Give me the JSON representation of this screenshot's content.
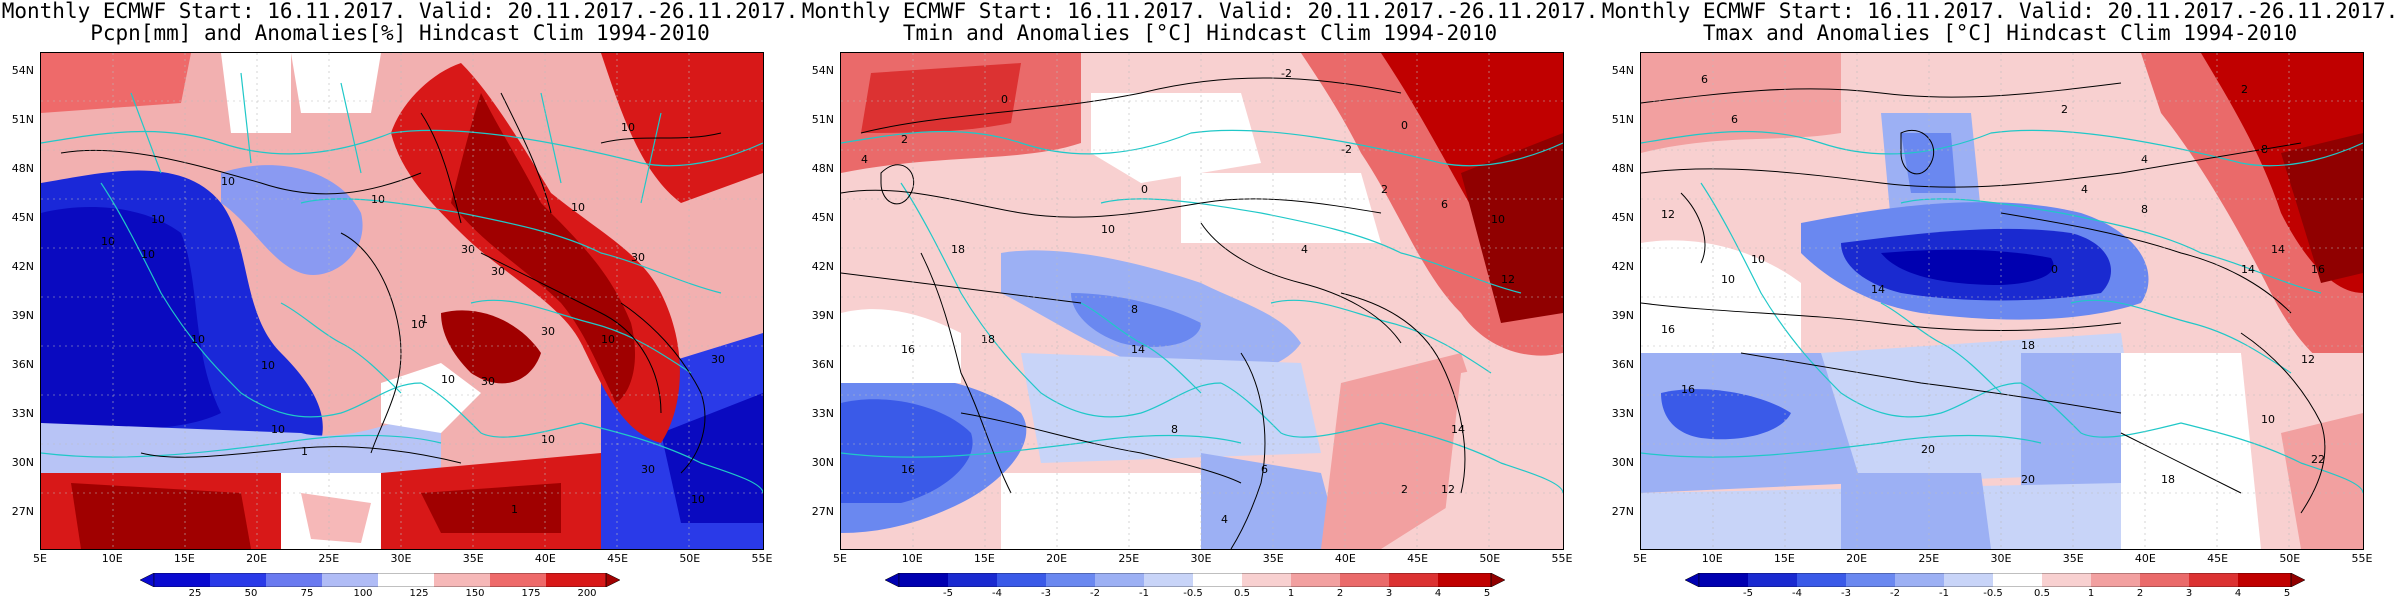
{
  "panels": [
    {
      "title1": "Monthly ECMWF Start: 16.11.2017. Valid: 20.11.2017.-26.11.2017.",
      "title2": "Pcpn[mm] and Anomalies[%] Hindcast Clim 1994-2010",
      "colorbar": [
        "25",
        "50",
        "75",
        "100",
        "125",
        "150",
        "175",
        "200"
      ],
      "colorbar_colors": [
        "#0a0ad0",
        "#2a3ae8",
        "#6a7af0",
        "#b0bcf6",
        "#ffffff",
        "#f6b8b8",
        "#ee6a6a",
        "#d81818",
        "#a00000"
      ],
      "contour_labels": [
        "10",
        "10",
        "10",
        "10",
        "10",
        "10",
        "10",
        "10",
        "30",
        "30",
        "30",
        "30",
        "30",
        "30",
        "30",
        "10",
        "10",
        "10",
        "10",
        "10",
        "1",
        "1",
        "1",
        "10",
        "10"
      ]
    },
    {
      "title1": "Monthly ECMWF Start: 16.11.2017. Valid: 20.11.2017.-26.11.2017.",
      "title2": "Tmin and Anomalies [°C] Hindcast Clim 1994-2010",
      "colorbar": [
        "-5",
        "-4",
        "-3",
        "-2",
        "-1",
        "-0.5",
        "0.5",
        "1",
        "2",
        "3",
        "4",
        "5"
      ],
      "colorbar_colors": [
        "#0000b0",
        "#1a2ad0",
        "#3a5ae8",
        "#6a88f0",
        "#9cb0f4",
        "#c8d4f8",
        "#ffffff",
        "#f8d0d0",
        "#f2a0a0",
        "#ea6a6a",
        "#dc3232",
        "#c00000",
        "#900000"
      ],
      "contour_labels": [
        "-2",
        "0",
        "2",
        "4",
        "6",
        "8",
        "10",
        "12",
        "14",
        "16",
        "18",
        "0",
        "2",
        "4",
        "6",
        "8",
        "10",
        "12",
        "14",
        "16",
        "18",
        "2",
        "-2",
        "4",
        "0"
      ]
    },
    {
      "title1": "Monthly ECMWF Start: 16.11.2017. Valid: 20.11.2017.-26.11.2017.",
      "title2": "Tmax and Anomalies [°C] Hindcast Clim 1994-2010",
      "colorbar": [
        "-5",
        "-4",
        "-3",
        "-2",
        "-1",
        "-0.5",
        "0.5",
        "1",
        "2",
        "3",
        "4",
        "5"
      ],
      "colorbar_colors": [
        "#0000b0",
        "#1a2ad0",
        "#3a5ae8",
        "#6a88f0",
        "#9cb0f4",
        "#c8d4f8",
        "#ffffff",
        "#f8d0d0",
        "#f2a0a0",
        "#ea6a6a",
        "#dc3232",
        "#c00000",
        "#900000"
      ],
      "contour_labels": [
        "2",
        "4",
        "6",
        "8",
        "10",
        "12",
        "14",
        "16",
        "18",
        "20",
        "22",
        "2",
        "4",
        "6",
        "8",
        "10",
        "12",
        "14",
        "16",
        "18",
        "20",
        "0",
        "10",
        "14",
        "16"
      ]
    }
  ],
  "lat_labels": [
    "54N",
    "51N",
    "48N",
    "45N",
    "42N",
    "39N",
    "36N",
    "33N",
    "30N",
    "27N"
  ],
  "lon_labels": [
    "5E",
    "10E",
    "15E",
    "20E",
    "25E",
    "30E",
    "35E",
    "40E",
    "45E",
    "50E",
    "55E"
  ]
}
